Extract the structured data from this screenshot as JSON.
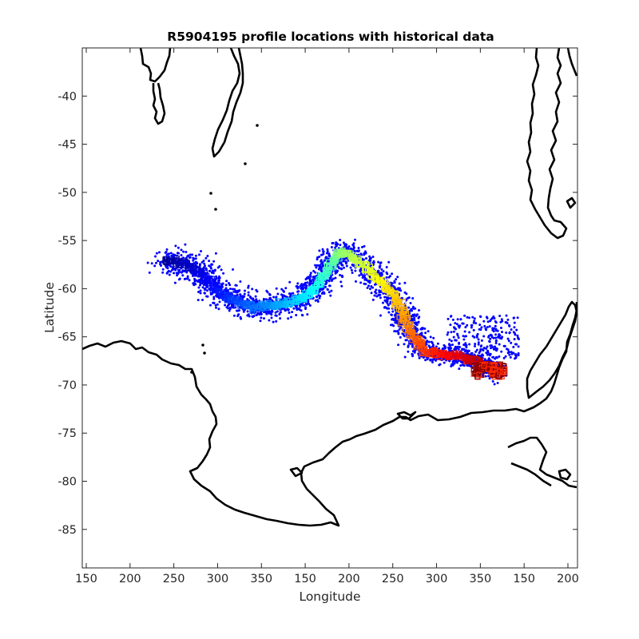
{
  "chart_data": {
    "type": "scatter",
    "title": "R5904195 profile locations with historical data",
    "xlabel": "Longitude",
    "ylabel": "Latitude",
    "ylim": [
      -89,
      -35
    ],
    "x_tick_labels": [
      "150",
      "200",
      "250",
      "300",
      "350",
      "150",
      "200",
      "250",
      "300",
      "350",
      "150",
      "200"
    ],
    "y_tick_labels": [
      "-40",
      "-45",
      "-50",
      "-55",
      "-60",
      "-65",
      "-70",
      "-75",
      "-80",
      "-85"
    ],
    "y_ticks": [
      -40,
      -45,
      -50,
      -55,
      -60,
      -65,
      -70,
      -75,
      -80,
      -85
    ],
    "grid": false,
    "colormap": [
      "#00008f",
      "#0000ff",
      "#00ffff",
      "#ffff00",
      "#ff0000",
      "#800000"
    ],
    "colors": {
      "historical": "#0000ff",
      "coastline": "#000000",
      "axes": "#262626"
    }
  }
}
